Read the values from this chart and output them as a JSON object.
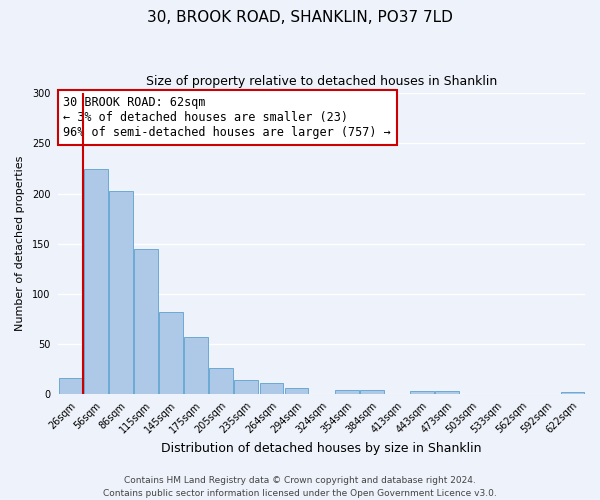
{
  "title": "30, BROOK ROAD, SHANKLIN, PO37 7LD",
  "subtitle": "Size of property relative to detached houses in Shanklin",
  "xlabel": "Distribution of detached houses by size in Shanklin",
  "ylabel": "Number of detached properties",
  "bar_color": "#aec8e8",
  "bar_edge_color": "#6aaad4",
  "background_color": "#eef2fa",
  "grid_color": "#ffffff",
  "categories": [
    "26sqm",
    "56sqm",
    "86sqm",
    "115sqm",
    "145sqm",
    "175sqm",
    "205sqm",
    "235sqm",
    "264sqm",
    "294sqm",
    "324sqm",
    "354sqm",
    "384sqm",
    "413sqm",
    "443sqm",
    "473sqm",
    "503sqm",
    "533sqm",
    "562sqm",
    "592sqm",
    "622sqm"
  ],
  "values": [
    16,
    224,
    203,
    145,
    82,
    57,
    26,
    14,
    11,
    6,
    0,
    4,
    4,
    0,
    3,
    3,
    0,
    0,
    0,
    0,
    2
  ],
  "ylim": [
    0,
    300
  ],
  "yticks": [
    0,
    50,
    100,
    150,
    200,
    250,
    300
  ],
  "vline_color": "#cc0000",
  "vline_x": 0.5,
  "annotation_text": "30 BROOK ROAD: 62sqm\n← 3% of detached houses are smaller (23)\n96% of semi-detached houses are larger (757) →",
  "annotation_box_color": "#ffffff",
  "annotation_box_edge": "#cc0000",
  "footer_text": "Contains HM Land Registry data © Crown copyright and database right 2024.\nContains public sector information licensed under the Open Government Licence v3.0.",
  "title_fontsize": 11,
  "subtitle_fontsize": 9,
  "xlabel_fontsize": 9,
  "ylabel_fontsize": 8,
  "tick_fontsize": 7,
  "annotation_fontsize": 8.5,
  "footer_fontsize": 6.5
}
